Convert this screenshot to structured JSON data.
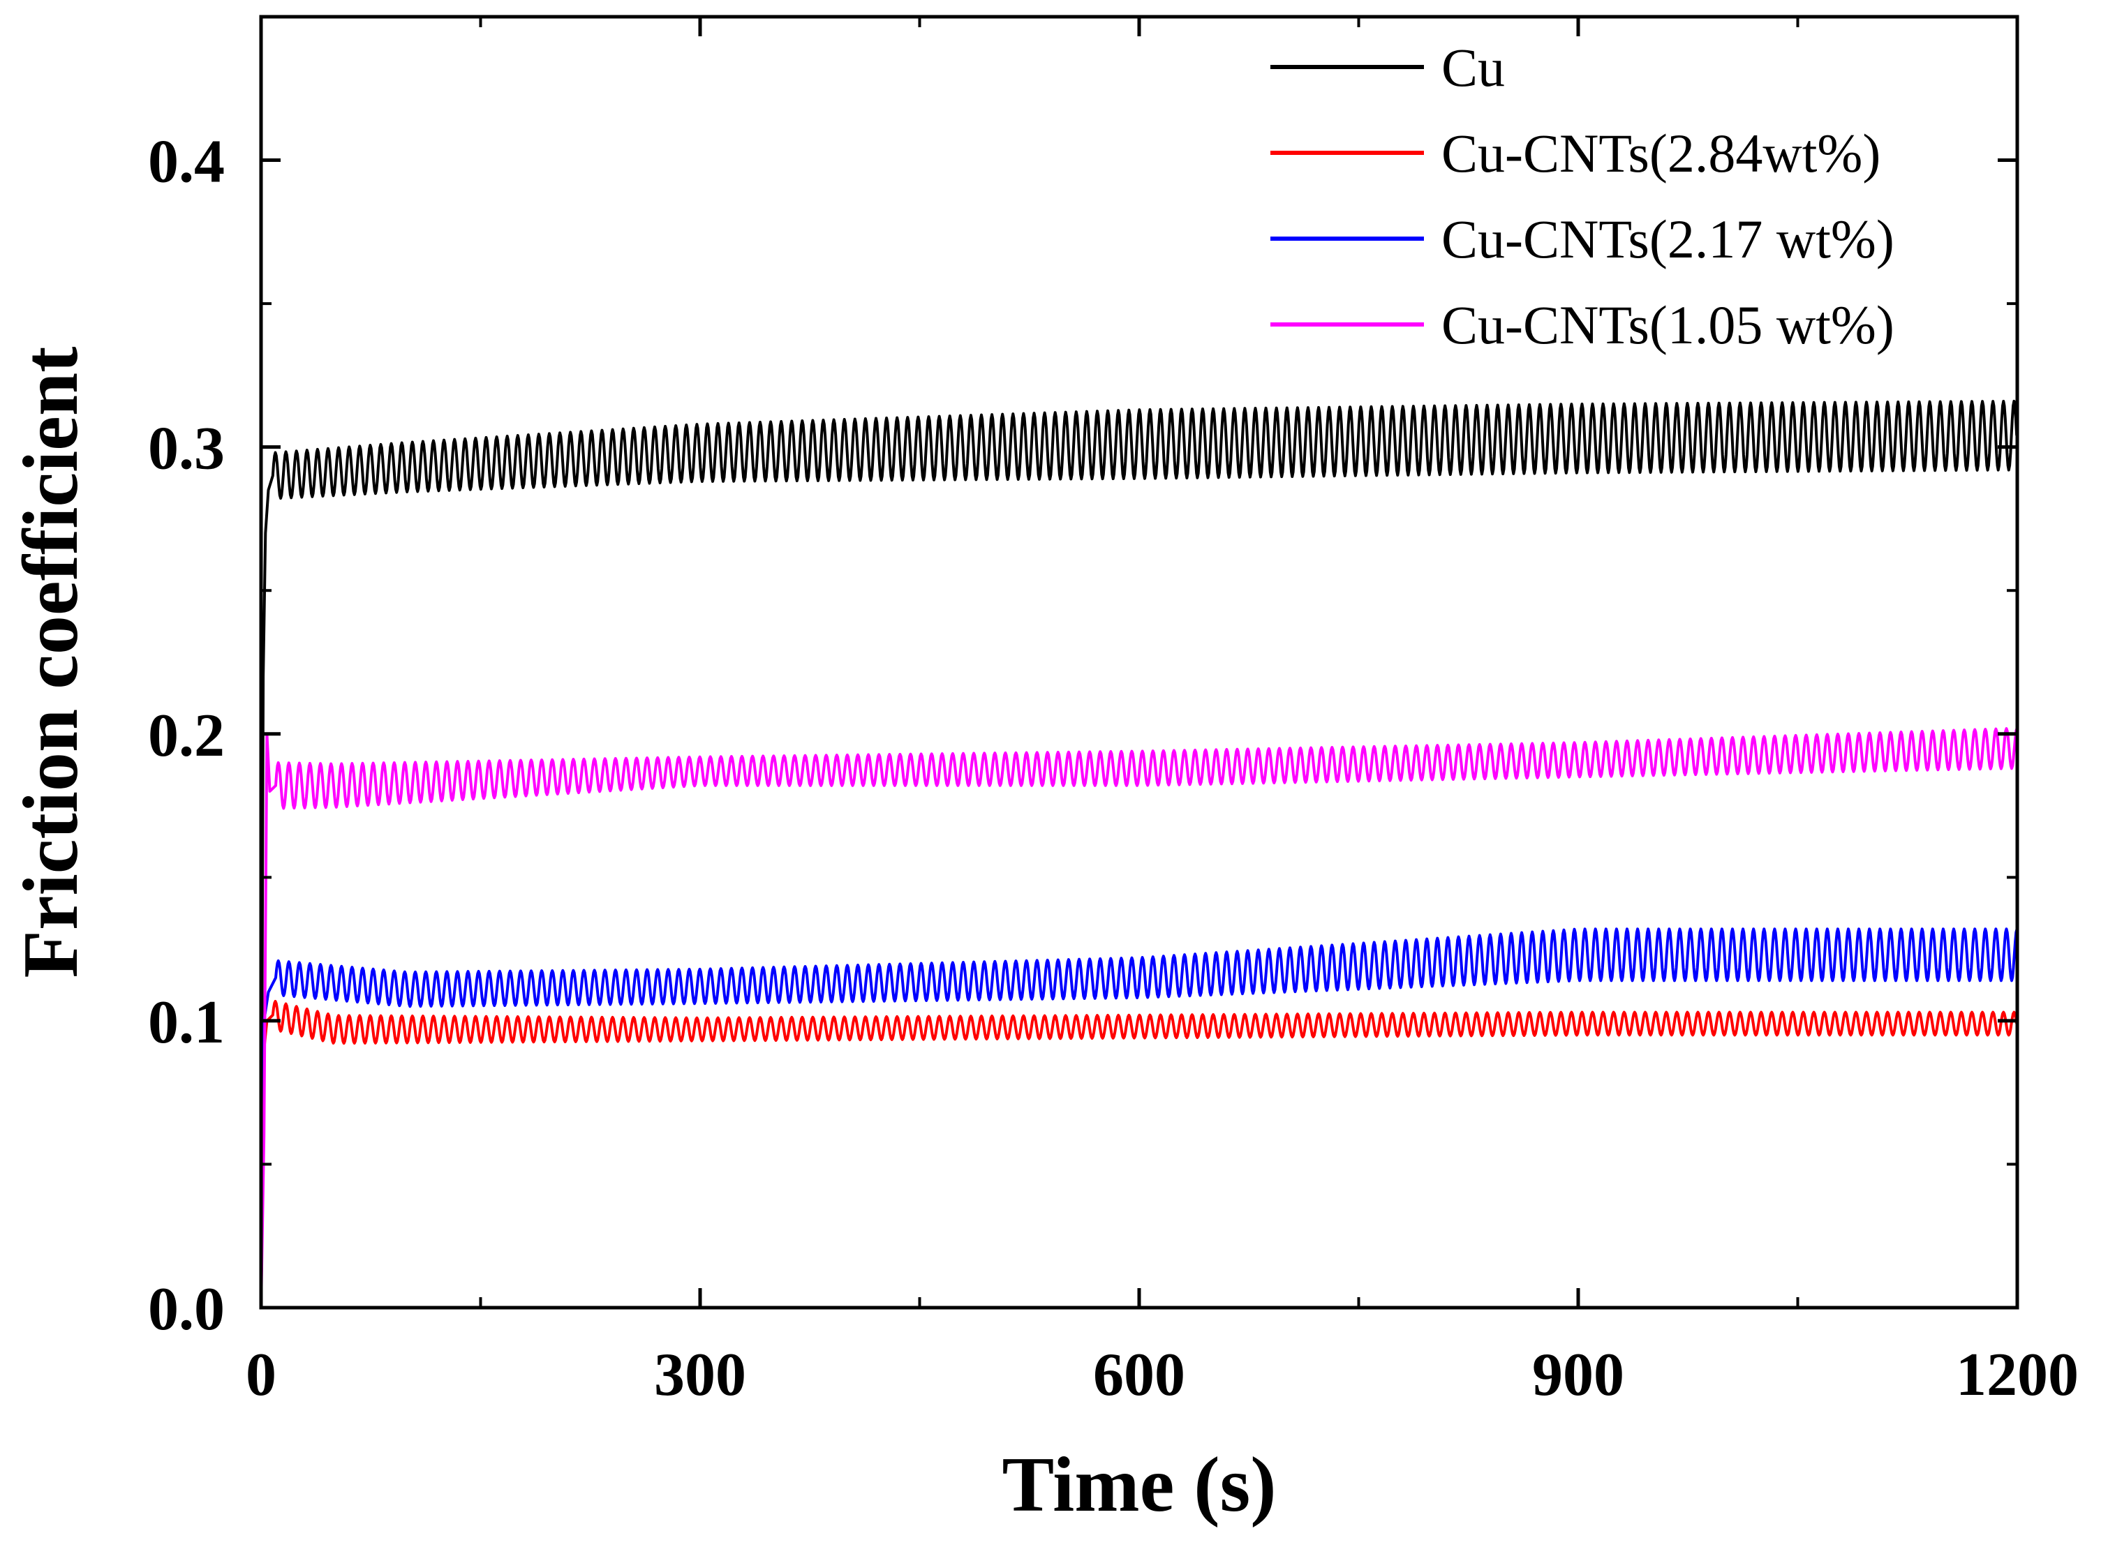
{
  "chart_data": {
    "type": "line",
    "title": "",
    "xlabel": "Time (s)",
    "ylabel": "Friction coefficient",
    "xlim": [
      0,
      1200
    ],
    "ylim": [
      0,
      0.45
    ],
    "xticks": [
      0,
      300,
      600,
      900,
      1200
    ],
    "xtick_labels": [
      "0",
      "300",
      "600",
      "900",
      "1200"
    ],
    "yticks": [
      0.0,
      0.1,
      0.2,
      0.3,
      0.4
    ],
    "ytick_labels": [
      "0.0",
      "0.1",
      "0.2",
      "0.3",
      "0.4"
    ],
    "grid": false,
    "legend_position": "top-right",
    "series": [
      {
        "name": "Cu",
        "color": "#000000",
        "startup": [
          [
            0,
            0.0
          ],
          [
            1.5,
            0.22
          ],
          [
            3,
            0.27
          ],
          [
            5,
            0.285
          ],
          [
            8,
            0.29
          ]
        ],
        "mean_profile": [
          [
            8,
            0.29
          ],
          [
            100,
            0.293
          ],
          [
            300,
            0.298
          ],
          [
            600,
            0.301
          ],
          [
            900,
            0.303
          ],
          [
            1200,
            0.304
          ]
        ],
        "amplitude_profile": [
          [
            8,
            0.008
          ],
          [
            300,
            0.01
          ],
          [
            600,
            0.012
          ],
          [
            900,
            0.012
          ],
          [
            1200,
            0.012
          ]
        ],
        "oscillation_period_s": 7.2
      },
      {
        "name": "Cu-CNTs(2.84wt%)",
        "color": "#ff0000",
        "startup": [
          [
            0,
            0.0
          ],
          [
            2,
            0.09
          ],
          [
            4,
            0.1
          ],
          [
            8,
            0.102
          ]
        ],
        "mean_profile": [
          [
            8,
            0.102
          ],
          [
            50,
            0.097
          ],
          [
            300,
            0.097
          ],
          [
            600,
            0.098
          ],
          [
            900,
            0.099
          ],
          [
            1200,
            0.099
          ]
        ],
        "amplitude_profile": [
          [
            8,
            0.005
          ],
          [
            300,
            0.004
          ],
          [
            600,
            0.004
          ],
          [
            900,
            0.004
          ],
          [
            1200,
            0.004
          ]
        ],
        "oscillation_period_s": 7.2
      },
      {
        "name": "Cu-CNTs(2.17 wt%)",
        "color": "#0000ff",
        "startup": [
          [
            0,
            0.0
          ],
          [
            2,
            0.1
          ],
          [
            5,
            0.11
          ],
          [
            10,
            0.115
          ]
        ],
        "mean_profile": [
          [
            10,
            0.115
          ],
          [
            100,
            0.111
          ],
          [
            300,
            0.112
          ],
          [
            600,
            0.115
          ],
          [
            900,
            0.123
          ],
          [
            1200,
            0.123
          ]
        ],
        "amplitude_profile": [
          [
            10,
            0.006
          ],
          [
            300,
            0.006
          ],
          [
            600,
            0.007
          ],
          [
            900,
            0.009
          ],
          [
            1200,
            0.009
          ]
        ],
        "oscillation_period_s": 7.2
      },
      {
        "name": "Cu-CNTs(1.05 wt%)",
        "color": "#ff00ff",
        "startup": [
          [
            0,
            0.0
          ],
          [
            2,
            0.06
          ],
          [
            4,
            0.2
          ],
          [
            6,
            0.18
          ],
          [
            10,
            0.182
          ]
        ],
        "mean_profile": [
          [
            10,
            0.182
          ],
          [
            50,
            0.182
          ],
          [
            300,
            0.187
          ],
          [
            600,
            0.188
          ],
          [
            900,
            0.191
          ],
          [
            1200,
            0.195
          ]
        ],
        "amplitude_profile": [
          [
            10,
            0.008
          ],
          [
            300,
            0.005
          ],
          [
            600,
            0.006
          ],
          [
            900,
            0.006
          ],
          [
            1200,
            0.007
          ]
        ],
        "oscillation_period_s": 7.2
      }
    ]
  }
}
